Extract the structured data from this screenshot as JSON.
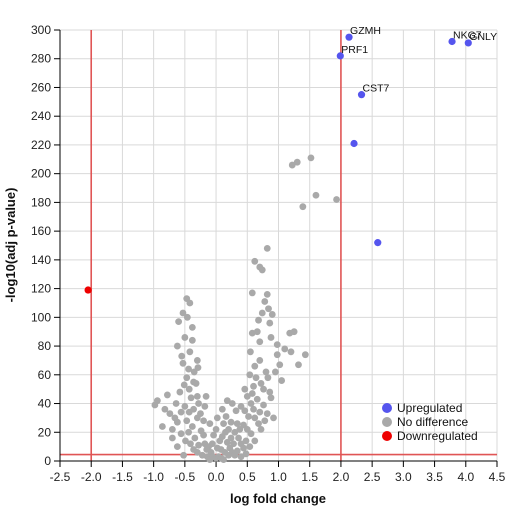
{
  "chart_data": {
    "type": "scatter",
    "title": "",
    "xlabel": "log fold change",
    "ylabel": "-log10(adj p-value)",
    "xlim": [
      -2.5,
      4.5
    ],
    "ylim": [
      0,
      300
    ],
    "x_ticks": [
      "-2.5",
      "-2.0",
      "-1.5",
      "-1.0",
      "-0.5",
      "0.0",
      "0.5",
      "1.0",
      "1.5",
      "2.0",
      "2.5",
      "3.0",
      "3.5",
      "4.0",
      "4.5"
    ],
    "y_ticks": [
      "0",
      "20",
      "40",
      "60",
      "80",
      "100",
      "120",
      "140",
      "160",
      "180",
      "200",
      "220",
      "240",
      "260",
      "280",
      "300"
    ],
    "grid": true,
    "legend_position": "bottom-right",
    "threshold_lines": {
      "color": "#e05555",
      "x": [
        -2.0,
        2.0
      ],
      "y": 4.5
    },
    "series": [
      {
        "name": "Upregulated",
        "color": "#5555ee",
        "points": [
          {
            "x": 2.13,
            "y": 295,
            "label": "GZMH"
          },
          {
            "x": 1.99,
            "y": 282,
            "label": "PRF1"
          },
          {
            "x": 3.78,
            "y": 292,
            "label": "NKG7"
          },
          {
            "x": 4.04,
            "y": 291,
            "label": "GNLY"
          },
          {
            "x": 2.33,
            "y": 255,
            "label": "CST7"
          },
          {
            "x": 2.21,
            "y": 221,
            "label": ""
          },
          {
            "x": 2.59,
            "y": 152,
            "label": ""
          }
        ]
      },
      {
        "name": "No difference",
        "color": "#a9a9a9",
        "points": [
          {
            "x": 1.22,
            "y": 206
          },
          {
            "x": 1.3,
            "y": 208
          },
          {
            "x": 1.52,
            "y": 211
          },
          {
            "x": 1.6,
            "y": 185
          },
          {
            "x": 1.39,
            "y": 177
          },
          {
            "x": 1.93,
            "y": 182
          },
          {
            "x": 0.82,
            "y": 148
          },
          {
            "x": 0.62,
            "y": 139
          },
          {
            "x": 0.7,
            "y": 135
          },
          {
            "x": 0.74,
            "y": 133
          },
          {
            "x": 0.58,
            "y": 117
          },
          {
            "x": 0.82,
            "y": 116
          },
          {
            "x": 0.78,
            "y": 111
          },
          {
            "x": 0.84,
            "y": 106
          },
          {
            "x": 0.74,
            "y": 103
          },
          {
            "x": 0.68,
            "y": 98
          },
          {
            "x": 0.86,
            "y": 96
          },
          {
            "x": 1.18,
            "y": 89
          },
          {
            "x": 1.25,
            "y": 90
          },
          {
            "x": 0.58,
            "y": 89
          },
          {
            "x": 0.88,
            "y": 86
          },
          {
            "x": 0.7,
            "y": 83
          },
          {
            "x": 0.98,
            "y": 81
          },
          {
            "x": 1.2,
            "y": 76
          },
          {
            "x": 1.1,
            "y": 78
          },
          {
            "x": 0.98,
            "y": 74
          },
          {
            "x": 1.43,
            "y": 74
          },
          {
            "x": 1.32,
            "y": 67
          },
          {
            "x": 1.02,
            "y": 67
          },
          {
            "x": 0.62,
            "y": 66
          },
          {
            "x": 0.64,
            "y": 58
          },
          {
            "x": 0.83,
            "y": 58
          },
          {
            "x": 0.72,
            "y": 54
          },
          {
            "x": 0.8,
            "y": 62
          },
          {
            "x": 0.54,
            "y": 60
          },
          {
            "x": -0.47,
            "y": 113
          },
          {
            "x": -0.42,
            "y": 110
          },
          {
            "x": -0.53,
            "y": 103
          },
          {
            "x": -0.6,
            "y": 97
          },
          {
            "x": -0.46,
            "y": 100
          },
          {
            "x": -0.5,
            "y": 86
          },
          {
            "x": -0.38,
            "y": 84
          },
          {
            "x": -0.42,
            "y": 76
          },
          {
            "x": -0.53,
            "y": 68
          },
          {
            "x": -0.44,
            "y": 64
          },
          {
            "x": -0.47,
            "y": 58
          },
          {
            "x": -0.29,
            "y": 65
          },
          {
            "x": -0.36,
            "y": 55
          },
          {
            "x": -0.51,
            "y": 53
          },
          {
            "x": -0.43,
            "y": 50
          },
          {
            "x": -0.32,
            "y": 54
          },
          {
            "x": -0.4,
            "y": 44
          },
          {
            "x": -0.5,
            "y": 38
          },
          {
            "x": -0.43,
            "y": 34
          },
          {
            "x": -0.28,
            "y": 40
          },
          {
            "x": -0.18,
            "y": 38
          },
          {
            "x": -0.94,
            "y": 42
          },
          {
            "x": -0.98,
            "y": 39
          },
          {
            "x": -0.82,
            "y": 36
          },
          {
            "x": -0.74,
            "y": 33
          },
          {
            "x": -0.66,
            "y": 30
          },
          {
            "x": -0.62,
            "y": 27
          },
          {
            "x": -0.86,
            "y": 24
          },
          {
            "x": -0.7,
            "y": 22
          },
          {
            "x": -0.56,
            "y": 19
          },
          {
            "x": -0.49,
            "y": 14
          },
          {
            "x": -0.52,
            "y": 4
          },
          {
            "x": -0.47,
            "y": 28
          },
          {
            "x": -0.38,
            "y": 24
          },
          {
            "x": -0.3,
            "y": 30
          },
          {
            "x": -0.24,
            "y": 21
          },
          {
            "x": -0.2,
            "y": 18
          },
          {
            "x": -0.34,
            "y": 16
          },
          {
            "x": -0.41,
            "y": 12
          },
          {
            "x": -0.28,
            "y": 11
          },
          {
            "x": -0.18,
            "y": 12
          },
          {
            "x": -0.12,
            "y": 10
          },
          {
            "x": -0.15,
            "y": 8
          },
          {
            "x": -0.08,
            "y": 6
          },
          {
            "x": -0.3,
            "y": 6
          },
          {
            "x": -0.22,
            "y": 4
          },
          {
            "x": -0.14,
            "y": 3
          },
          {
            "x": -0.05,
            "y": 3
          },
          {
            "x": 0.0,
            "y": 2
          },
          {
            "x": 0.04,
            "y": 3
          },
          {
            "x": 0.08,
            "y": 2
          },
          {
            "x": -0.1,
            "y": 1
          },
          {
            "x": 0.12,
            "y": 1
          },
          {
            "x": -0.36,
            "y": 8
          },
          {
            "x": -0.06,
            "y": 12
          },
          {
            "x": 0.02,
            "y": 9
          },
          {
            "x": 0.06,
            "y": 14
          },
          {
            "x": 0.1,
            "y": 17
          },
          {
            "x": 0.15,
            "y": 20
          },
          {
            "x": 0.18,
            "y": 13
          },
          {
            "x": 0.22,
            "y": 9
          },
          {
            "x": 0.26,
            "y": 6
          },
          {
            "x": 0.3,
            "y": 4
          },
          {
            "x": 0.34,
            "y": 7
          },
          {
            "x": 0.2,
            "y": 4
          },
          {
            "x": 0.14,
            "y": 6
          },
          {
            "x": 0.08,
            "y": 8
          },
          {
            "x": 0.28,
            "y": 12
          },
          {
            "x": 0.24,
            "y": 16
          },
          {
            "x": 0.2,
            "y": 22
          },
          {
            "x": 0.12,
            "y": 26
          },
          {
            "x": 0.16,
            "y": 31
          },
          {
            "x": 0.24,
            "y": 27
          },
          {
            "x": 0.3,
            "y": 20
          },
          {
            "x": 0.36,
            "y": 16
          },
          {
            "x": 0.4,
            "y": 12
          },
          {
            "x": 0.44,
            "y": 9
          },
          {
            "x": 0.48,
            "y": 14
          },
          {
            "x": 0.38,
            "y": 22
          },
          {
            "x": 0.34,
            "y": 26
          },
          {
            "x": 0.44,
            "y": 25
          },
          {
            "x": 0.5,
            "y": 22
          },
          {
            "x": 0.52,
            "y": 31
          },
          {
            "x": 0.46,
            "y": 35
          },
          {
            "x": 0.4,
            "y": 38
          },
          {
            "x": 0.56,
            "y": 40
          },
          {
            "x": 0.6,
            "y": 36
          },
          {
            "x": 0.66,
            "y": 43
          },
          {
            "x": 0.58,
            "y": 47
          },
          {
            "x": 0.5,
            "y": 45
          },
          {
            "x": 0.62,
            "y": 30
          },
          {
            "x": 0.7,
            "y": 34
          },
          {
            "x": 0.76,
            "y": 39
          },
          {
            "x": 0.68,
            "y": 26
          },
          {
            "x": 0.56,
            "y": 19
          },
          {
            "x": 0.72,
            "y": 22
          },
          {
            "x": 0.78,
            "y": 28
          },
          {
            "x": 0.82,
            "y": 33
          },
          {
            "x": 0.92,
            "y": 30
          },
          {
            "x": 0.88,
            "y": 44
          },
          {
            "x": 0.86,
            "y": 48
          },
          {
            "x": 0.62,
            "y": 14
          },
          {
            "x": 0.54,
            "y": 10
          },
          {
            "x": 0.48,
            "y": 5
          },
          {
            "x": 0.4,
            "y": 3
          },
          {
            "x": -0.25,
            "y": 33
          },
          {
            "x": -0.3,
            "y": 45
          },
          {
            "x": -0.2,
            "y": 28
          },
          {
            "x": 0.1,
            "y": 36
          },
          {
            "x": 0.0,
            "y": 22
          },
          {
            "x": -0.04,
            "y": 18
          },
          {
            "x": 0.46,
            "y": 50
          },
          {
            "x": 0.6,
            "y": 52
          },
          {
            "x": 0.76,
            "y": 50
          },
          {
            "x": -0.58,
            "y": 48
          },
          {
            "x": -0.64,
            "y": 40
          },
          {
            "x": -0.78,
            "y": 46
          },
          {
            "x": -0.7,
            "y": 16
          },
          {
            "x": -0.62,
            "y": 10
          },
          {
            "x": -0.44,
            "y": 20
          },
          {
            "x": -0.56,
            "y": 34
          },
          {
            "x": -0.36,
            "y": 36
          },
          {
            "x": 0.32,
            "y": 35
          },
          {
            "x": 0.26,
            "y": 40
          },
          {
            "x": 0.18,
            "y": 42
          },
          {
            "x": 0.02,
            "y": 30
          },
          {
            "x": -0.1,
            "y": 26
          },
          {
            "x": -0.16,
            "y": 45
          },
          {
            "x": 1.05,
            "y": 56
          },
          {
            "x": 0.95,
            "y": 62
          },
          {
            "x": 0.7,
            "y": 70
          },
          {
            "x": 0.55,
            "y": 76
          },
          {
            "x": 0.66,
            "y": 90
          },
          {
            "x": 0.9,
            "y": 102
          },
          {
            "x": -0.55,
            "y": 73
          },
          {
            "x": -0.62,
            "y": 80
          },
          {
            "x": -0.38,
            "y": 93
          },
          {
            "x": -0.3,
            "y": 70
          },
          {
            "x": -0.35,
            "y": 62
          }
        ]
      },
      {
        "name": "Downregulated",
        "color": "#ee0000",
        "points": [
          {
            "x": -2.05,
            "y": 119,
            "label": ""
          }
        ]
      }
    ]
  }
}
